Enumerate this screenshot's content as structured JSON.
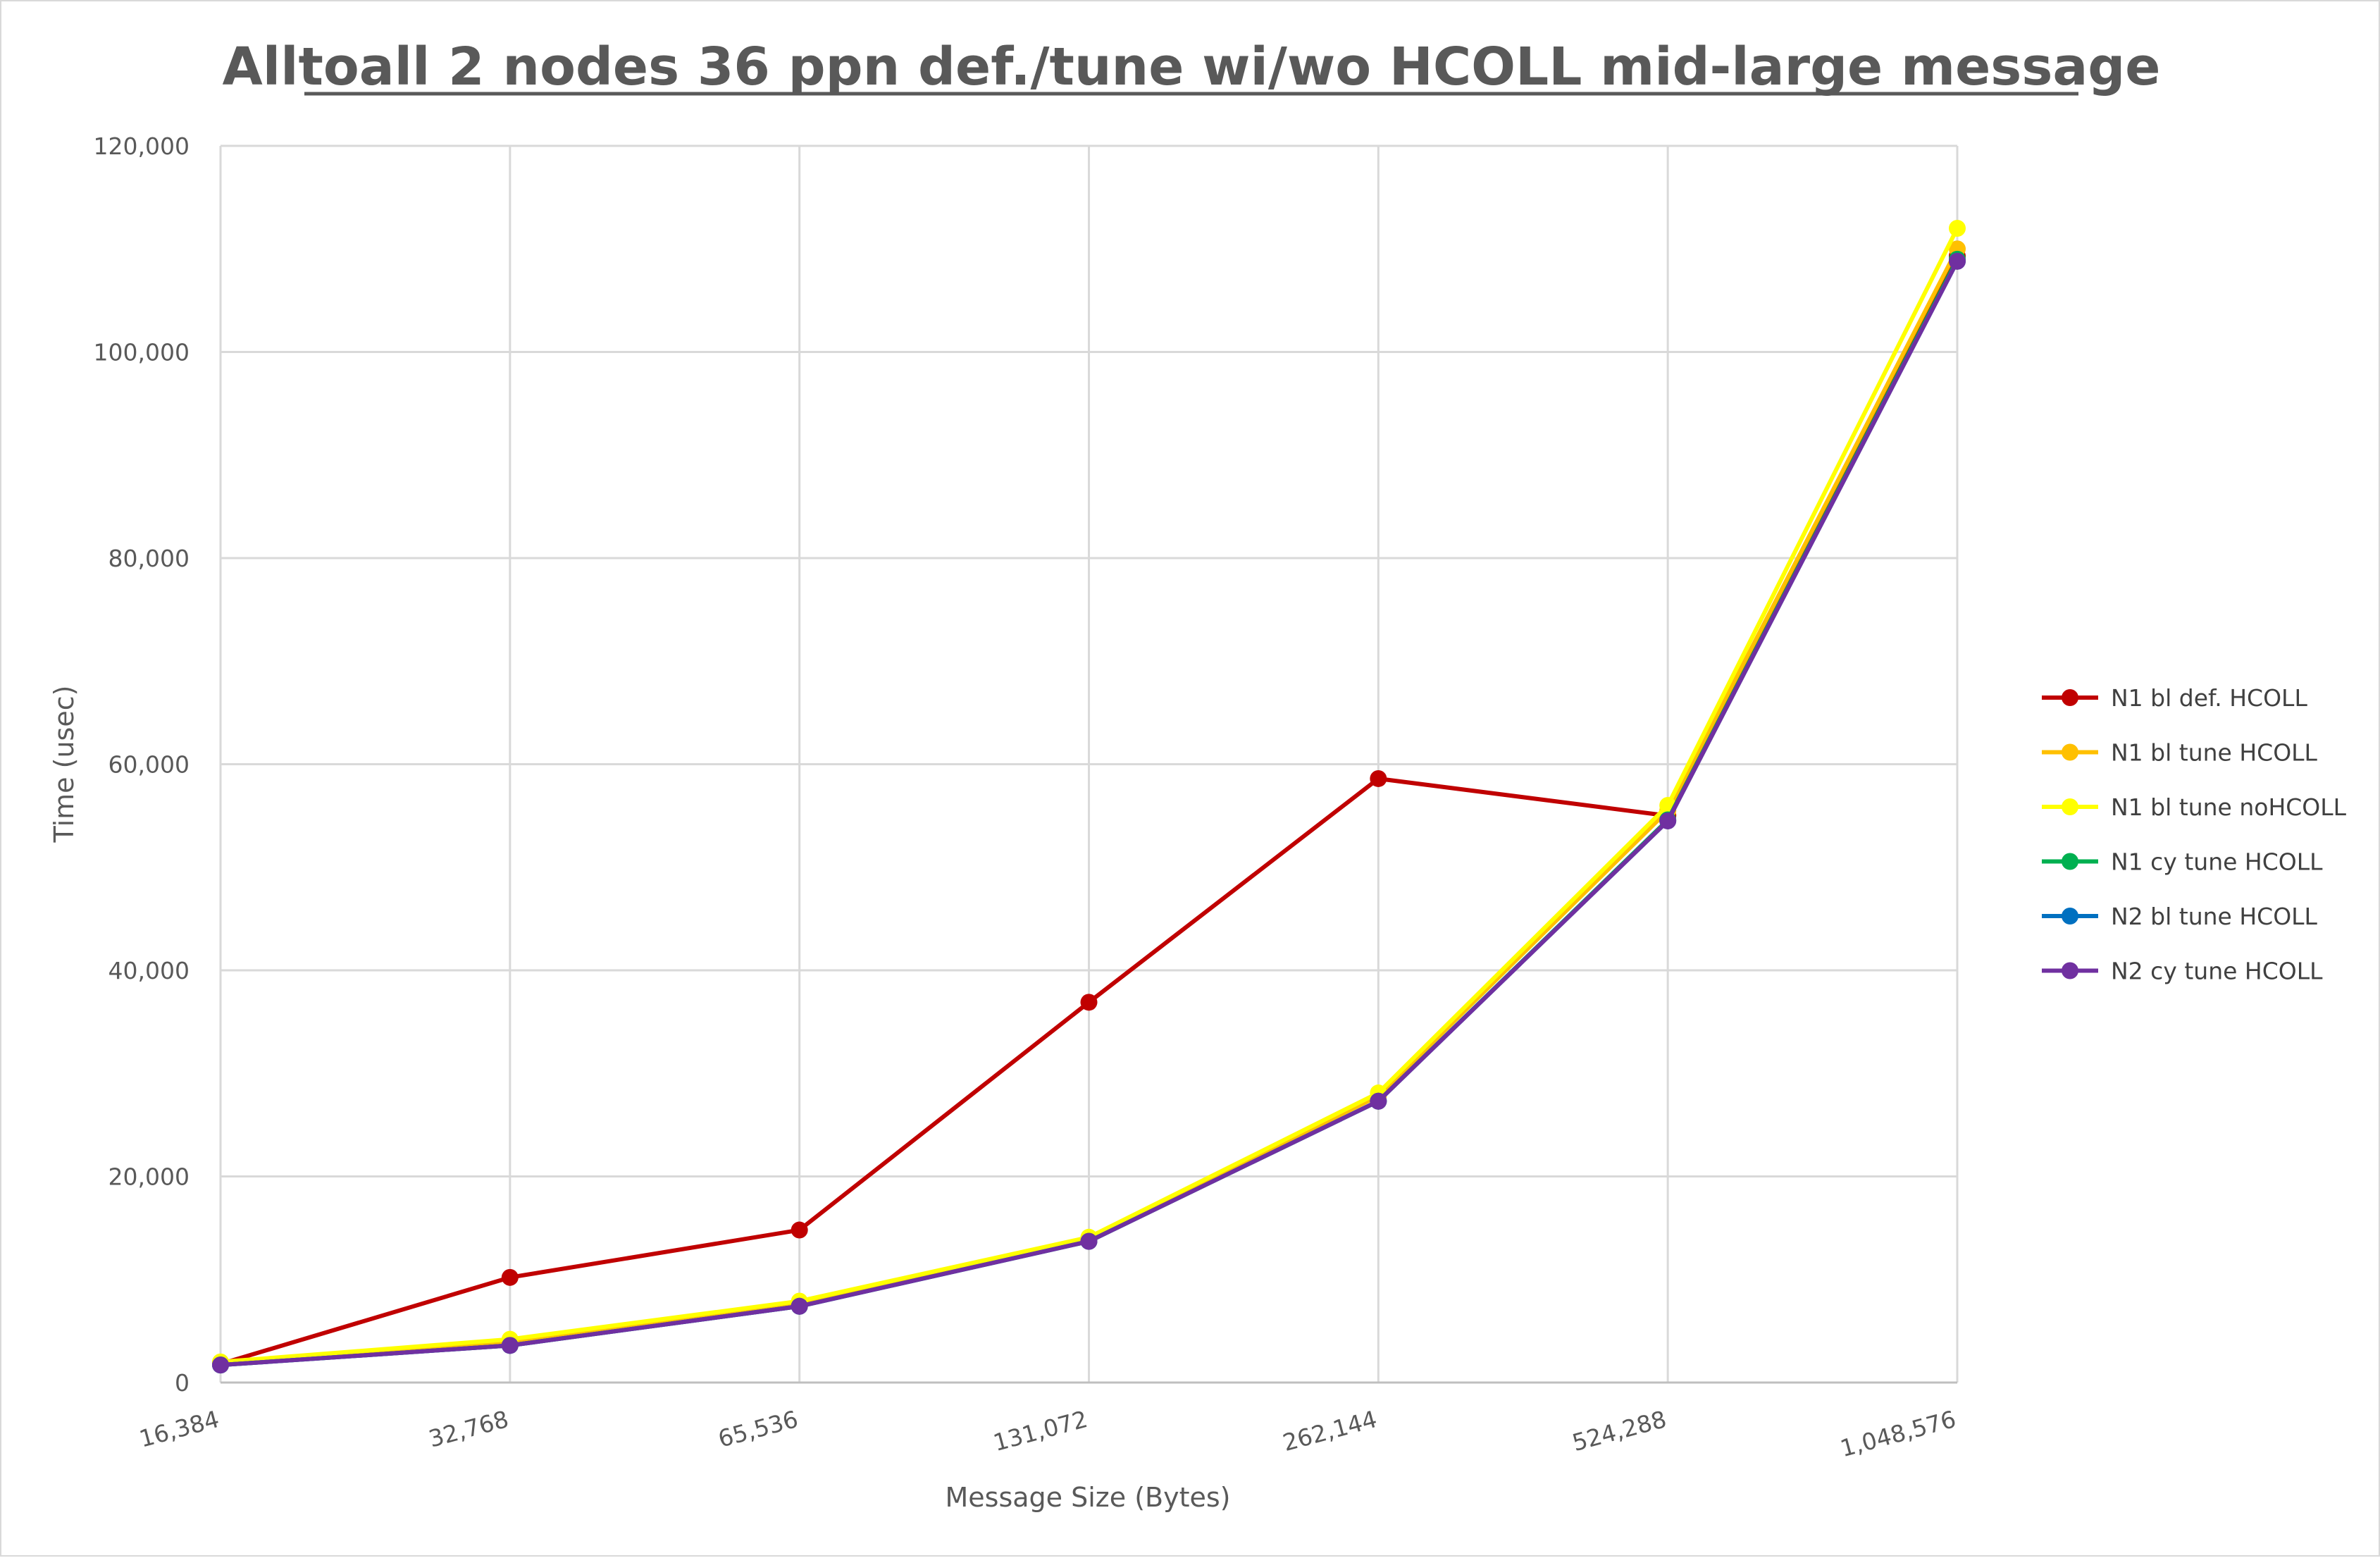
{
  "chart_data": {
    "type": "line",
    "title": "Alltoall 2 nodes 36 ppn def./tune wi/wo HCOLL mid-large message",
    "xlabel": "Message Size (Bytes)",
    "ylabel": "Time (usec)",
    "categories": [
      "16,384",
      "32,768",
      "65,536",
      "131,072",
      "262,144",
      "524,288",
      "1,048,576"
    ],
    "ylim": [
      0,
      120000
    ],
    "yticks": [
      0,
      20000,
      40000,
      60000,
      80000,
      100000,
      120000
    ],
    "ytick_labels": [
      "0",
      "20,000",
      "40,000",
      "60,000",
      "80,000",
      "100,000",
      "120,000"
    ],
    "grid": true,
    "legend_position": "right",
    "series": [
      {
        "name": "N1 bl def. HCOLL",
        "color": "#c00000",
        "values": [
          1800,
          10200,
          14800,
          36900,
          58600,
          55000,
          109300
        ]
      },
      {
        "name": "N1 bl tune HCOLL",
        "color": "#ffc000",
        "values": [
          1900,
          4000,
          7700,
          13900,
          27800,
          55500,
          110000
        ]
      },
      {
        "name": "N1 bl tune noHCOLL",
        "color": "#ffff00",
        "values": [
          2000,
          4200,
          7900,
          14100,
          28100,
          56000,
          112000
        ]
      },
      {
        "name": "N1 cy tune HCOLL",
        "color": "#00b050",
        "values": [
          1700,
          3600,
          7400,
          13700,
          27300,
          54600,
          109000
        ]
      },
      {
        "name": "N2 bl tune HCOLL",
        "color": "#0070c0",
        "values": [
          1700,
          3600,
          7400,
          13700,
          27300,
          54500,
          108800
        ]
      },
      {
        "name": "N2 cy tune HCOLL",
        "color": "#7030a0",
        "values": [
          1700,
          3600,
          7400,
          13700,
          27300,
          54500,
          108800
        ]
      }
    ]
  }
}
